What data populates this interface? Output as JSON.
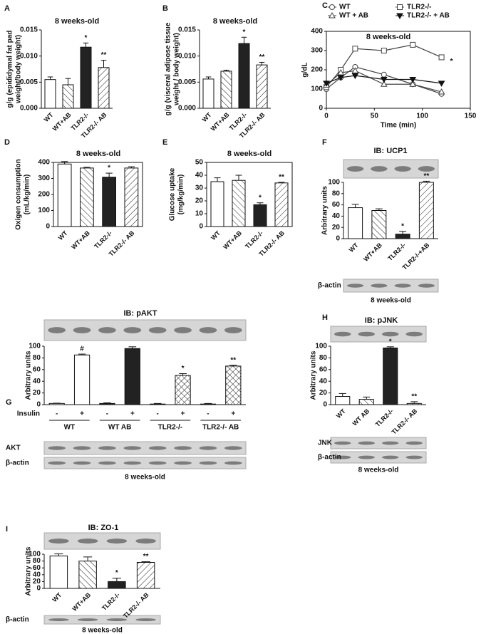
{
  "chart_data": [
    {
      "panel": "A",
      "type": "bar",
      "title": "8 weeks-old",
      "ylabel": [
        "g/g (epididymal fat pad",
        "weight/body weight)"
      ],
      "categories": [
        "WT",
        "WT+AB",
        "TLR2-/-",
        "TLR2-/- AB"
      ],
      "values": [
        0.0055,
        0.0045,
        0.0117,
        0.0078
      ],
      "errors": [
        0.0005,
        0.0012,
        0.0008,
        0.0014
      ],
      "annotations": [
        null,
        null,
        "*",
        "**"
      ],
      "fill_styles": [
        "white",
        "backslash",
        "black",
        "slash"
      ],
      "ylim": [
        0,
        0.015
      ],
      "yticks": [
        {
          "value": 0,
          "label": "0.000"
        },
        0.005,
        {
          "value": 0.01,
          "label": "0.010"
        },
        0.015
      ]
    },
    {
      "panel": "B",
      "type": "bar",
      "title": "8 weeks-old",
      "ylabel": [
        "g/g (visceral adipose tissue",
        "weight / body weight)"
      ],
      "categories": [
        "WT",
        "WT+AB",
        "TLR2-/-",
        "TLR2-/- AB"
      ],
      "values": [
        0.0056,
        0.0071,
        0.0124,
        0.0083
      ],
      "errors": [
        0.0004,
        0.0002,
        0.0012,
        0.0005
      ],
      "annotations": [
        null,
        null,
        "*",
        "**"
      ],
      "fill_styles": [
        "white",
        "backslash",
        "black",
        "slash"
      ],
      "ylim": [
        0,
        0.015
      ],
      "yticks": [
        {
          "value": 0,
          "label": "0.000"
        },
        0.005,
        {
          "value": 0.01,
          "label": "0.010"
        },
        0.015
      ]
    },
    {
      "panel": "C",
      "type": "line",
      "title": "8 weeks-old",
      "ylabel": [
        "g/dL"
      ],
      "xlabel": "Time (min)",
      "annotation": "*",
      "x": [
        0,
        15,
        30,
        60,
        90,
        120
      ],
      "legend": "top",
      "series": [
        {
          "name": "WT",
          "color": "#444444",
          "marker": "open-circle",
          "values": [
            100,
            160,
            215,
            175,
            125,
            75
          ]
        },
        {
          "name": "TLR2-/-",
          "color": "#444444",
          "marker": "open-square",
          "values": [
            110,
            200,
            310,
            300,
            330,
            265
          ]
        },
        {
          "name": "WT + AB",
          "color": "#444444",
          "marker": "open-triangle-up",
          "values": [
            120,
            185,
            195,
            125,
            125,
            85
          ]
        },
        {
          "name": "TLR2-/- + AB",
          "color": "#111111",
          "marker": "filled-triangle-down",
          "values": [
            130,
            160,
            170,
            150,
            150,
            130
          ]
        }
      ],
      "xlim": [
        0,
        150
      ],
      "xticks": [
        0,
        50,
        100,
        150
      ],
      "ylim": [
        0,
        400
      ],
      "yticks": [
        0,
        100,
        200,
        300,
        400
      ]
    },
    {
      "panel": "D",
      "type": "bar",
      "title": "8 weeks-old",
      "ylabel": [
        "Oxigen consumption",
        "(mL/kg/min)"
      ],
      "frame": true,
      "categories": [
        "WT",
        "WT+AB",
        "TLR2-/-",
        "TLR2-/- AB"
      ],
      "values": [
        390,
        365,
        308,
        365
      ],
      "errors": [
        15,
        5,
        25,
        8
      ],
      "annotations": [
        null,
        null,
        "*",
        null
      ],
      "fill_styles": [
        "white",
        "backslash",
        "black",
        "slash"
      ],
      "ylim": [
        0,
        400
      ],
      "yticks": [
        0,
        100,
        200,
        300,
        400
      ]
    },
    {
      "panel": "E",
      "type": "bar",
      "title": "8 weeks-old",
      "ylabel": [
        "Glucose uptake",
        "(mg/kg/min)"
      ],
      "frame": true,
      "categories": [
        "WT",
        "WT+AB",
        "TLR2-/-",
        "TLR2-/- AB"
      ],
      "values": [
        35,
        36,
        17,
        34
      ],
      "errors": [
        3,
        4,
        1.5,
        0.5
      ],
      "annotations": [
        null,
        null,
        "*",
        "**"
      ],
      "fill_styles": [
        "white",
        "backslash",
        "black",
        "slash"
      ],
      "ylim": [
        0,
        50
      ],
      "yticks": [
        0,
        10,
        20,
        30,
        40,
        50
      ]
    },
    {
      "panel": "F",
      "type": "bar",
      "title": "IB: UCP1",
      "ylabel": [
        "Arbitrary units"
      ],
      "blots": [
        "β-actin"
      ],
      "footer": "8 weeks-old",
      "categories": [
        "WT",
        "WT+AB",
        "TLR2-/-",
        "TLR2-/-+AB"
      ],
      "values": [
        55,
        50,
        8,
        100
      ],
      "errors": [
        6,
        3,
        5,
        2
      ],
      "annotations": [
        null,
        null,
        "*",
        "**"
      ],
      "fill_styles": [
        "white",
        "backslash",
        "black",
        "slash"
      ],
      "ylim": [
        0,
        100
      ],
      "yticks": [
        0,
        20,
        40,
        60,
        80,
        100
      ]
    },
    {
      "panel": "G",
      "type": "bar",
      "title": "IB: pAKT",
      "ylabel": [
        "Arbitrary units"
      ],
      "blots": [
        "AKT",
        "β-actin"
      ],
      "footer": "8 weeks-old",
      "x_row_label": "Insulin",
      "groups": [
        "WT",
        "WT AB",
        "TLR2-/-",
        "TLR2-/- AB"
      ],
      "categories": [
        "-",
        "+",
        "-",
        "+",
        "-",
        "+",
        "-",
        "+"
      ],
      "values": [
        2,
        85,
        2,
        96,
        1,
        50,
        1,
        66
      ],
      "errors": [
        0.5,
        1.5,
        1,
        3,
        1,
        3,
        1,
        1.5
      ],
      "annotations": [
        null,
        "#",
        null,
        null,
        null,
        "*",
        null,
        "**"
      ],
      "fill_styles": [
        "white",
        "white",
        "black",
        "black",
        "cross",
        "cross",
        "cross",
        "cross"
      ],
      "ylim": [
        0,
        100
      ],
      "yticks": [
        0,
        20,
        40,
        60,
        80,
        100
      ]
    },
    {
      "panel": "H",
      "type": "bar",
      "title": "IB: pJNK",
      "ylabel": [
        "Arbitrary units"
      ],
      "blots": [
        "JNK",
        "β-actin"
      ],
      "footer": "8 weeks-old",
      "categories": [
        "WT",
        "WT AB",
        "TLR2-/-",
        "TLR2-/- AB"
      ],
      "values": [
        14,
        9,
        97,
        2
      ],
      "errors": [
        5,
        4,
        2,
        3
      ],
      "annotations": [
        null,
        null,
        "*",
        "**"
      ],
      "fill_styles": [
        "white",
        "backslash",
        "black",
        "slash"
      ],
      "ylim": [
        0,
        100
      ],
      "yticks": [
        0,
        20,
        40,
        60,
        80,
        100
      ]
    },
    {
      "panel": "I",
      "type": "bar",
      "title": "IB: ZO-1",
      "ylabel": [
        "Arbitrary units"
      ],
      "blots": [
        "β-actin"
      ],
      "footer": "8 weeks-old",
      "categories": [
        "WT",
        "WT+AB",
        "TLR2-/-",
        "TLR2-/- AB"
      ],
      "values": [
        95,
        80,
        20,
        76
      ],
      "errors": [
        6,
        12,
        10,
        2
      ],
      "annotations": [
        null,
        null,
        "*",
        "**"
      ],
      "fill_styles": [
        "white",
        "backslash",
        "black",
        "slash"
      ],
      "ylim": [
        0,
        100
      ],
      "yticks": [
        0,
        20,
        40,
        60,
        80,
        100
      ]
    }
  ]
}
